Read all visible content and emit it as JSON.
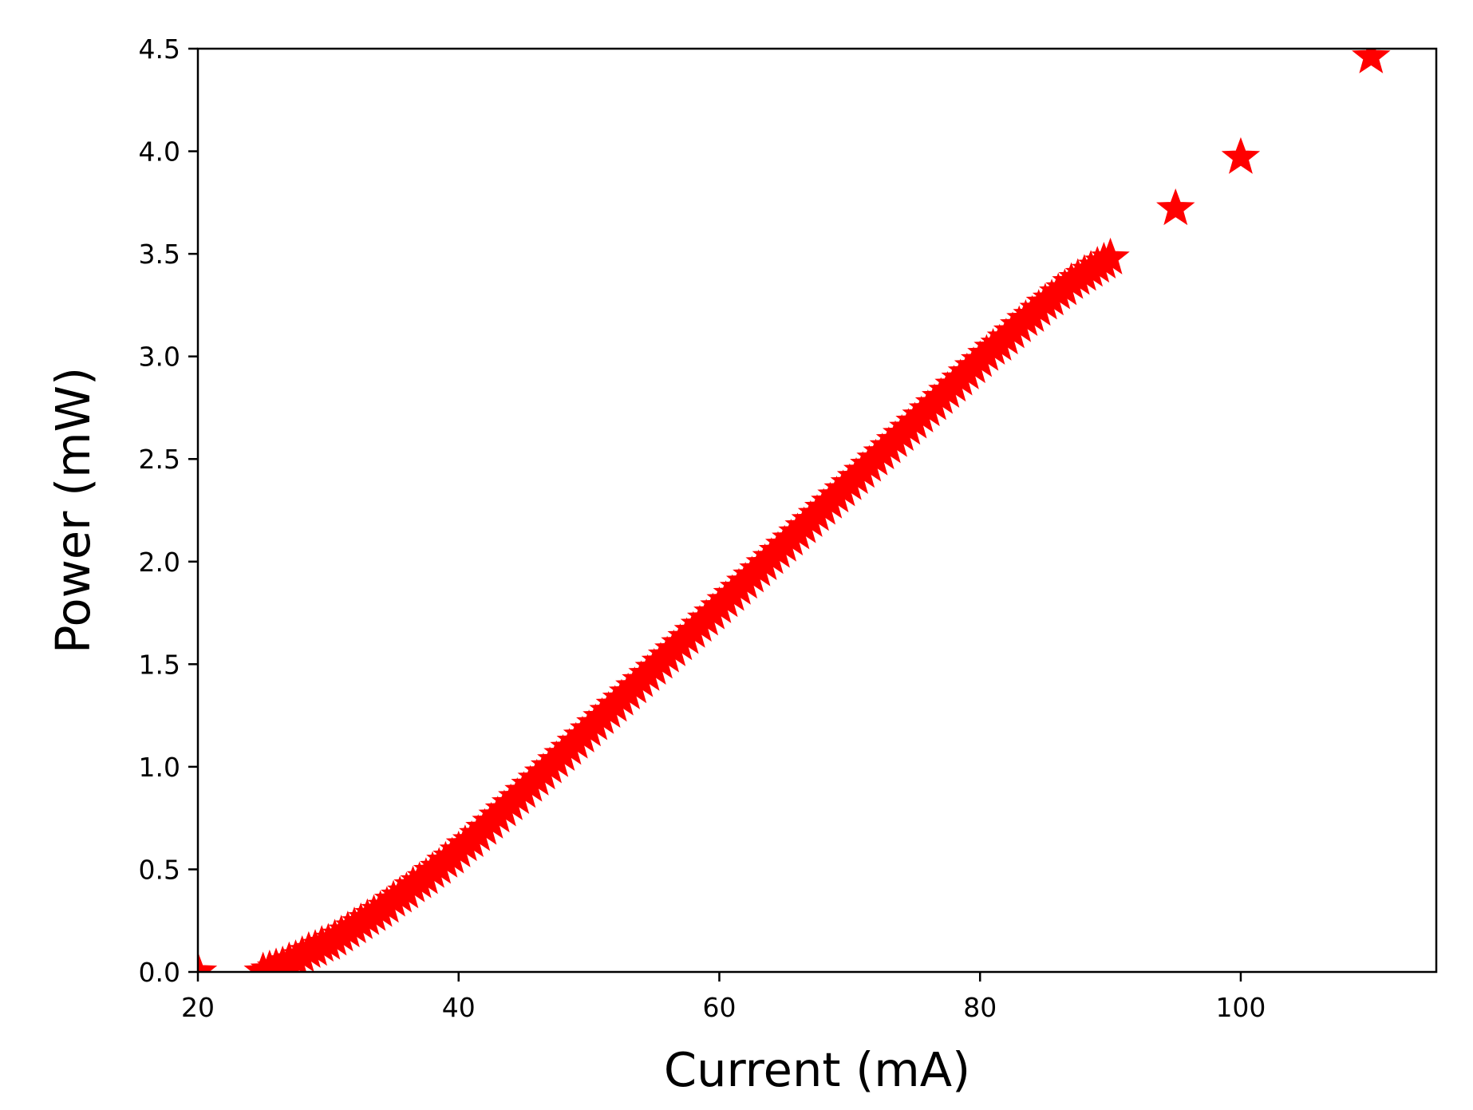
{
  "chart_data": {
    "type": "scatter",
    "title": "",
    "xlabel": "Current (mA)",
    "ylabel": "Power (mW)",
    "xlim": [
      20,
      115
    ],
    "ylim": [
      0,
      4.5
    ],
    "x_ticks": [
      20,
      40,
      60,
      80,
      100
    ],
    "x_tick_labels": [
      "20",
      "40",
      "60",
      "80",
      "100"
    ],
    "y_ticks": [
      0.0,
      0.5,
      1.0,
      1.5,
      2.0,
      2.5,
      3.0,
      3.5,
      4.0,
      4.5
    ],
    "y_tick_labels": [
      "0.0",
      "0.5",
      "1.0",
      "1.5",
      "2.0",
      "2.5",
      "3.0",
      "3.5",
      "4.0",
      "4.5"
    ],
    "grid": false,
    "legend": "none",
    "marker": "star",
    "marker_color": "#ff0000",
    "series": [
      {
        "points": [
          [
            20.0,
            0.0
          ],
          [
            25.0,
            0.0
          ],
          [
            25.5,
            0.01
          ],
          [
            26.0,
            0.02
          ],
          [
            26.5,
            0.03
          ],
          [
            27.0,
            0.05
          ],
          [
            27.5,
            0.06
          ],
          [
            28.0,
            0.08
          ],
          [
            28.5,
            0.1
          ],
          [
            29.0,
            0.11
          ],
          [
            29.5,
            0.13
          ],
          [
            30.0,
            0.14
          ],
          [
            30.5,
            0.16
          ],
          [
            31.0,
            0.18
          ],
          [
            31.5,
            0.2
          ],
          [
            32.0,
            0.22
          ],
          [
            32.5,
            0.24
          ],
          [
            33.0,
            0.26
          ],
          [
            33.5,
            0.28
          ],
          [
            34.0,
            0.3
          ],
          [
            34.5,
            0.32
          ],
          [
            35.0,
            0.35
          ],
          [
            35.5,
            0.37
          ],
          [
            36.0,
            0.39
          ],
          [
            36.5,
            0.42
          ],
          [
            37.0,
            0.44
          ],
          [
            37.5,
            0.46
          ],
          [
            38.0,
            0.49
          ],
          [
            38.5,
            0.51
          ],
          [
            39.0,
            0.54
          ],
          [
            39.5,
            0.56
          ],
          [
            40.0,
            0.59
          ],
          [
            40.5,
            0.62
          ],
          [
            41.0,
            0.64
          ],
          [
            41.5,
            0.67
          ],
          [
            42.0,
            0.7
          ],
          [
            42.5,
            0.73
          ],
          [
            43.0,
            0.76
          ],
          [
            43.5,
            0.79
          ],
          [
            44.0,
            0.82
          ],
          [
            44.5,
            0.85
          ],
          [
            45.0,
            0.88
          ],
          [
            45.5,
            0.91
          ],
          [
            46.0,
            0.94
          ],
          [
            46.5,
            0.97
          ],
          [
            47.0,
            1.0
          ],
          [
            47.5,
            1.03
          ],
          [
            48.0,
            1.06
          ],
          [
            48.5,
            1.09
          ],
          [
            49.0,
            1.12
          ],
          [
            49.5,
            1.15
          ],
          [
            50.0,
            1.18
          ],
          [
            50.5,
            1.21
          ],
          [
            51.0,
            1.24
          ],
          [
            51.5,
            1.27
          ],
          [
            52.0,
            1.3
          ],
          [
            52.5,
            1.33
          ],
          [
            53.0,
            1.36
          ],
          [
            53.5,
            1.39
          ],
          [
            54.0,
            1.42
          ],
          [
            54.5,
            1.45
          ],
          [
            55.0,
            1.48
          ],
          [
            55.5,
            1.51
          ],
          [
            56.0,
            1.54
          ],
          [
            56.5,
            1.57
          ],
          [
            57.0,
            1.6
          ],
          [
            57.5,
            1.63
          ],
          [
            58.0,
            1.66
          ],
          [
            58.5,
            1.69
          ],
          [
            59.0,
            1.72
          ],
          [
            59.5,
            1.75
          ],
          [
            60.0,
            1.78
          ],
          [
            60.5,
            1.81
          ],
          [
            61.0,
            1.84
          ],
          [
            61.5,
            1.87
          ],
          [
            62.0,
            1.9
          ],
          [
            62.5,
            1.93
          ],
          [
            63.0,
            1.96
          ],
          [
            63.5,
            1.99
          ],
          [
            64.0,
            2.02
          ],
          [
            64.5,
            2.05
          ],
          [
            65.0,
            2.08
          ],
          [
            65.5,
            2.11
          ],
          [
            66.0,
            2.14
          ],
          [
            66.5,
            2.17
          ],
          [
            67.0,
            2.2
          ],
          [
            67.5,
            2.23
          ],
          [
            68.0,
            2.26
          ],
          [
            68.5,
            2.29
          ],
          [
            69.0,
            2.32
          ],
          [
            69.5,
            2.35
          ],
          [
            70.0,
            2.38
          ],
          [
            70.5,
            2.41
          ],
          [
            71.0,
            2.44
          ],
          [
            71.5,
            2.47
          ],
          [
            72.0,
            2.5
          ],
          [
            72.5,
            2.53
          ],
          [
            73.0,
            2.56
          ],
          [
            73.5,
            2.59
          ],
          [
            74.0,
            2.62
          ],
          [
            74.5,
            2.65
          ],
          [
            75.0,
            2.68
          ],
          [
            75.5,
            2.71
          ],
          [
            76.0,
            2.74
          ],
          [
            76.5,
            2.77
          ],
          [
            77.0,
            2.8
          ],
          [
            77.5,
            2.83
          ],
          [
            78.0,
            2.86
          ],
          [
            78.5,
            2.89
          ],
          [
            79.0,
            2.92
          ],
          [
            79.5,
            2.95
          ],
          [
            80.0,
            2.98
          ],
          [
            80.5,
            3.01
          ],
          [
            81.0,
            3.04
          ],
          [
            81.5,
            3.06
          ],
          [
            82.0,
            3.09
          ],
          [
            82.5,
            3.12
          ],
          [
            83.0,
            3.15
          ],
          [
            83.5,
            3.18
          ],
          [
            84.0,
            3.2
          ],
          [
            84.5,
            3.23
          ],
          [
            85.0,
            3.26
          ],
          [
            85.5,
            3.28
          ],
          [
            86.0,
            3.31
          ],
          [
            86.5,
            3.33
          ],
          [
            87.0,
            3.36
          ],
          [
            87.5,
            3.38
          ],
          [
            88.0,
            3.4
          ],
          [
            88.5,
            3.42
          ],
          [
            89.0,
            3.44
          ],
          [
            89.5,
            3.46
          ],
          [
            90.0,
            3.48
          ],
          [
            95.0,
            3.72
          ],
          [
            100.0,
            3.97
          ],
          [
            110.0,
            4.46
          ]
        ]
      }
    ]
  }
}
